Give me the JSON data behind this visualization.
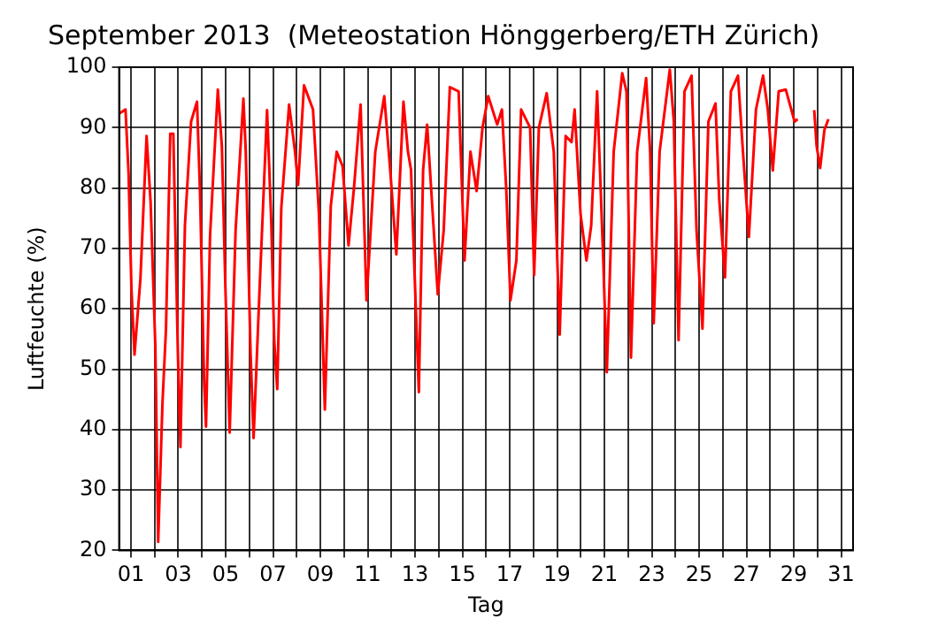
{
  "chart_data": {
    "type": "line",
    "title": "September 2013  (Meteostation Hönggerberg/ETH Zürich)",
    "xlabel": "Tag",
    "ylabel": "Luftfeuchte (%)",
    "xlim": [
      0.5,
      31.5
    ],
    "ylim": [
      20,
      100
    ],
    "xticks": [
      {
        "value": 1,
        "label": "01"
      },
      {
        "value": 2,
        "label": null
      },
      {
        "value": 3,
        "label": "03"
      },
      {
        "value": 4,
        "label": null
      },
      {
        "value": 5,
        "label": "05"
      },
      {
        "value": 6,
        "label": null
      },
      {
        "value": 7,
        "label": "07"
      },
      {
        "value": 8,
        "label": null
      },
      {
        "value": 9,
        "label": "09"
      },
      {
        "value": 10,
        "label": null
      },
      {
        "value": 11,
        "label": "11"
      },
      {
        "value": 12,
        "label": null
      },
      {
        "value": 13,
        "label": "13"
      },
      {
        "value": 14,
        "label": null
      },
      {
        "value": 15,
        "label": "15"
      },
      {
        "value": 16,
        "label": null
      },
      {
        "value": 17,
        "label": "17"
      },
      {
        "value": 18,
        "label": null
      },
      {
        "value": 19,
        "label": "19"
      },
      {
        "value": 20,
        "label": null
      },
      {
        "value": 21,
        "label": "21"
      },
      {
        "value": 22,
        "label": null
      },
      {
        "value": 23,
        "label": "23"
      },
      {
        "value": 24,
        "label": null
      },
      {
        "value": 25,
        "label": "25"
      },
      {
        "value": 26,
        "label": null
      },
      {
        "value": 27,
        "label": "27"
      },
      {
        "value": 28,
        "label": null
      },
      {
        "value": 29,
        "label": "29"
      },
      {
        "value": 30,
        "label": null
      },
      {
        "value": 31,
        "label": "31"
      }
    ],
    "yticks": [
      20,
      30,
      40,
      50,
      60,
      70,
      80,
      90,
      100
    ],
    "grid": true,
    "line_style": "solid",
    "marker": "none",
    "x": [
      0.53,
      0.77,
      0.9,
      1.02,
      1.15,
      1.4,
      1.66,
      1.83,
      2.03,
      2.15,
      2.33,
      2.48,
      2.66,
      2.79,
      2.98,
      3.09,
      3.28,
      3.54,
      3.79,
      3.92,
      4.09,
      4.17,
      4.34,
      4.67,
      4.84,
      4.99,
      5.17,
      5.42,
      5.75,
      5.85,
      6.05,
      6.18,
      6.43,
      6.75,
      6.93,
      7.05,
      7.18,
      7.35,
      7.68,
      7.93,
      8.06,
      8.31,
      8.69,
      8.94,
      9.19,
      9.44,
      9.69,
      9.94,
      10.19,
      10.42,
      10.7,
      10.95,
      11.32,
      11.7,
      11.95,
      12.21,
      12.51,
      12.7,
      12.83,
      12.96,
      13.16,
      13.34,
      13.51,
      13.71,
      13.96,
      14.21,
      14.47,
      14.84,
      15.09,
      15.34,
      15.6,
      15.85,
      16.09,
      16.47,
      16.67,
      16.85,
      17.03,
      17.28,
      17.48,
      17.86,
      18.03,
      18.23,
      18.56,
      18.86,
      19.11,
      19.36,
      19.61,
      19.74,
      19.99,
      20.24,
      20.44,
      20.69,
      20.95,
      21.1,
      21.39,
      21.75,
      21.93,
      22.12,
      22.38,
      22.76,
      22.93,
      23.08,
      23.33,
      23.76,
      23.93,
      24.13,
      24.38,
      24.68,
      24.89,
      25.14,
      25.39,
      25.69,
      25.85,
      26.09,
      26.34,
      26.64,
      26.85,
      27.1,
      27.4,
      27.7,
      27.9,
      28.11,
      28.36,
      28.66,
      29.03,
      29.16,
      29.5,
      29.86,
      29.96,
      30.11,
      30.29,
      30.46
    ],
    "series": [
      {
        "color": "#ff0000",
        "values": [
          92.4,
          93,
          82.4,
          63.4,
          52.4,
          65,
          88.6,
          77.7,
          53.8,
          21.4,
          44.3,
          56.7,
          89,
          89,
          53,
          37.1,
          73.8,
          91,
          94.3,
          79,
          48,
          40.5,
          72,
          96.3,
          87,
          63.4,
          39.5,
          73,
          94.8,
          86,
          53,
          38.6,
          63,
          92.9,
          74,
          54.8,
          46.7,
          76.7,
          93.8,
          86,
          80.5,
          97,
          93,
          75.7,
          43.3,
          77,
          86,
          83.6,
          70.5,
          80,
          93.8,
          61.4,
          86,
          95.2,
          83,
          69,
          94.3,
          86,
          83,
          68,
          46.2,
          83,
          90.5,
          78,
          62.4,
          73,
          96.7,
          96,
          68,
          86,
          79.5,
          90,
          95.2,
          90.5,
          93,
          80,
          61.4,
          68,
          93,
          90,
          65.6,
          90,
          95.7,
          86,
          55.7,
          88.6,
          87.6,
          93,
          75.7,
          68,
          73.8,
          96,
          68,
          49.5,
          86,
          99,
          96,
          51.9,
          86,
          98.2,
          86,
          57.6,
          86,
          99.6,
          91,
          54.8,
          96,
          98.6,
          73,
          56.7,
          91,
          94,
          78,
          65.2,
          96,
          98.6,
          86,
          71.9,
          93,
          98.6,
          93,
          82.9,
          96,
          96.3,
          91,
          91.4,
          null,
          92.9,
          87,
          83.3,
          89.6,
          91.4
        ]
      }
    ]
  }
}
